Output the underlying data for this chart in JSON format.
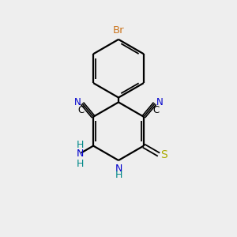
{
  "bg_color": "#eeeeee",
  "bond_color": "#000000",
  "Br_color": "#cc7722",
  "N_color": "#0000cc",
  "S_color": "#aaaa00",
  "NH_color": "#008888",
  "C_color": "#000000",
  "figsize": [
    3.0,
    3.0
  ],
  "dpi": 100,
  "xlim": [
    0,
    10
  ],
  "ylim": [
    0,
    10
  ]
}
